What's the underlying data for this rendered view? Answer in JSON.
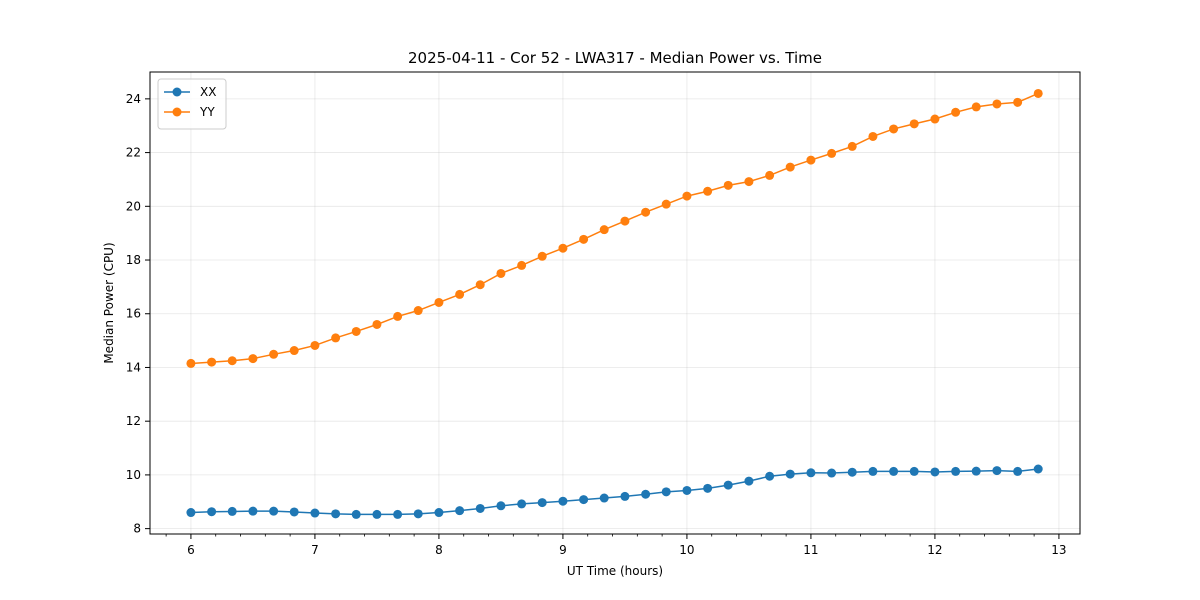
{
  "chart_data": {
    "type": "line",
    "title": "2025-04-11 - Cor 52 - LWA317 - Median Power vs. Time",
    "xlabel": "UT Time (hours)",
    "ylabel": "Median Power (CPU)",
    "xlim": [
      5.67,
      13.17
    ],
    "ylim": [
      7.8,
      25.0
    ],
    "xticks": [
      6,
      7,
      8,
      9,
      10,
      11,
      12,
      13
    ],
    "yticks": [
      8,
      10,
      12,
      14,
      16,
      18,
      20,
      22,
      24
    ],
    "grid": true,
    "legend_position": "upper-left",
    "x": [
      6.0,
      6.167,
      6.333,
      6.5,
      6.667,
      6.833,
      7.0,
      7.167,
      7.333,
      7.5,
      7.667,
      7.833,
      8.0,
      8.167,
      8.333,
      8.5,
      8.667,
      8.833,
      9.0,
      9.167,
      9.333,
      9.5,
      9.667,
      9.833,
      10.0,
      10.167,
      10.333,
      10.5,
      10.667,
      10.833,
      11.0,
      11.167,
      11.333,
      11.5,
      11.667,
      11.833,
      12.0,
      12.167,
      12.333,
      12.5,
      12.667,
      12.833
    ],
    "series": [
      {
        "name": "XX",
        "color": "#1f77b4",
        "values": [
          8.6,
          8.63,
          8.64,
          8.65,
          8.65,
          8.62,
          8.58,
          8.55,
          8.53,
          8.53,
          8.53,
          8.55,
          8.6,
          8.67,
          8.75,
          8.85,
          8.92,
          8.97,
          9.02,
          9.08,
          9.14,
          9.2,
          9.28,
          9.37,
          9.42,
          9.5,
          9.62,
          9.77,
          9.95,
          10.03,
          10.08,
          10.07,
          10.1,
          10.13,
          10.13,
          10.13,
          10.11,
          10.13,
          10.14,
          10.16,
          10.13,
          10.22
        ]
      },
      {
        "name": "YY",
        "color": "#ff7f0e",
        "values": [
          14.15,
          14.2,
          14.25,
          14.33,
          14.49,
          14.63,
          14.82,
          15.1,
          15.34,
          15.6,
          15.9,
          16.12,
          16.42,
          16.72,
          17.08,
          17.5,
          17.8,
          18.14,
          18.44,
          18.77,
          19.13,
          19.45,
          19.78,
          20.08,
          20.38,
          20.56,
          20.78,
          20.92,
          21.15,
          21.46,
          21.72,
          21.97,
          22.23,
          22.6,
          22.88,
          23.07,
          23.25,
          23.5,
          23.7,
          23.81,
          23.87,
          24.2
        ]
      }
    ]
  }
}
